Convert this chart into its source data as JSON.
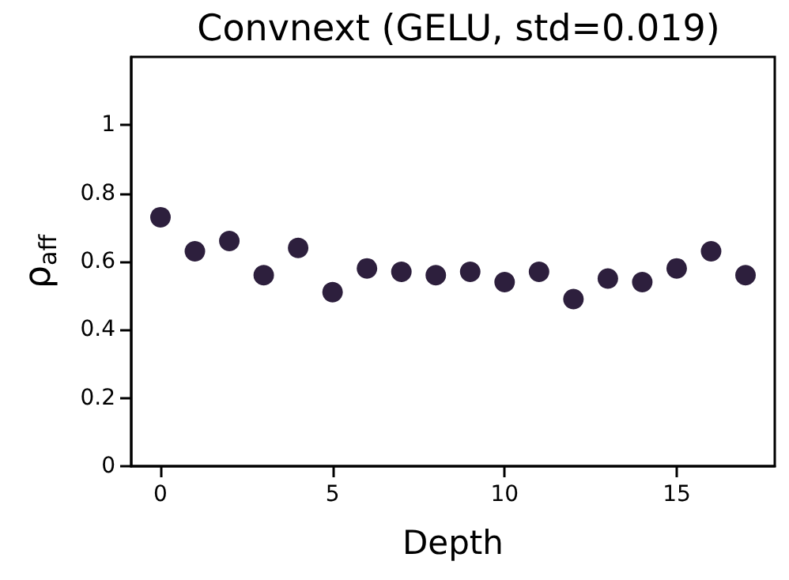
{
  "chart_data": {
    "type": "scatter",
    "title": "Convnext (GELU, std=0.019)",
    "xlabel": "Depth",
    "ylabel": "ρ$_{aff}$",
    "x": [
      0,
      1,
      2,
      3,
      4,
      5,
      6,
      7,
      8,
      9,
      10,
      11,
      12,
      13,
      14,
      15,
      16,
      17
    ],
    "series": [
      {
        "color": "#2d1f3d",
        "values": [
          0.73,
          0.63,
          0.66,
          0.56,
          0.64,
          0.51,
          0.58,
          0.57,
          0.56,
          0.57,
          0.54,
          0.57,
          0.49,
          0.55,
          0.54,
          0.58,
          0.63,
          0.56
        ]
      }
    ],
    "xlim": [
      -0.85,
      17.85
    ],
    "xticks": [
      0,
      5,
      10,
      15
    ],
    "ylim": [
      0,
      1.2
    ],
    "yticks": [
      0,
      0.2,
      0.4,
      0.6,
      0.8,
      1
    ],
    "grid": false,
    "marker": "circle"
  }
}
